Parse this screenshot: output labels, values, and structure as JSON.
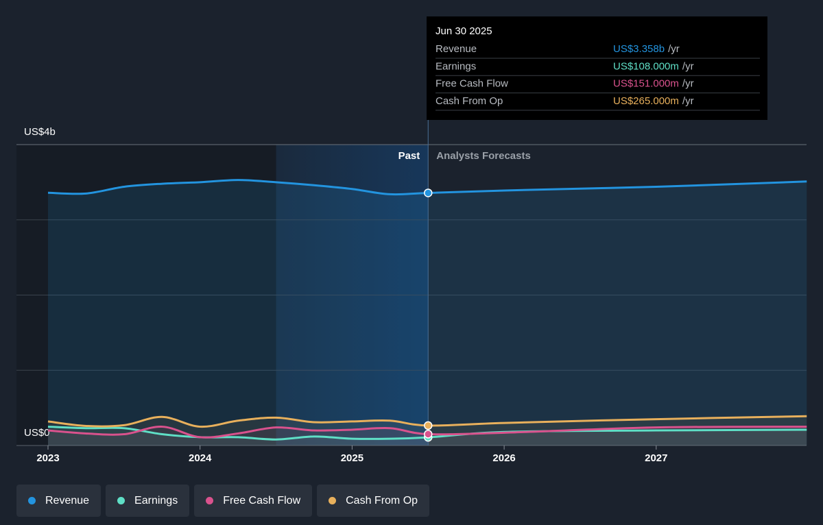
{
  "chart_data": {
    "type": "line",
    "x": [
      2023,
      2023.25,
      2023.5,
      2023.75,
      2024,
      2024.25,
      2024.5,
      2024.75,
      2025,
      2025.25,
      2025.5,
      2026,
      2027,
      2027.99
    ],
    "series": [
      {
        "name": "Revenue",
        "color": "#2394df",
        "values": [
          3.36,
          3.35,
          3.44,
          3.48,
          3.5,
          3.53,
          3.5,
          3.46,
          3.41,
          3.34,
          3.358,
          3.39,
          3.44,
          3.51
        ]
      },
      {
        "name": "Earnings",
        "color": "#5fdfc6",
        "values": [
          0.25,
          0.23,
          0.23,
          0.15,
          0.11,
          0.11,
          0.08,
          0.12,
          0.09,
          0.09,
          0.108,
          0.18,
          0.2,
          0.21
        ]
      },
      {
        "name": "Free Cash Flow",
        "color": "#d9528d",
        "values": [
          0.2,
          0.16,
          0.15,
          0.25,
          0.11,
          0.16,
          0.24,
          0.2,
          0.21,
          0.23,
          0.151,
          0.17,
          0.24,
          0.25
        ]
      },
      {
        "name": "Cash From Op",
        "color": "#e8b05c",
        "values": [
          0.32,
          0.26,
          0.27,
          0.38,
          0.25,
          0.33,
          0.37,
          0.31,
          0.32,
          0.33,
          0.265,
          0.3,
          0.35,
          0.39
        ]
      }
    ],
    "xlim": [
      2023,
      2027.99
    ],
    "xticks": [
      2023,
      2024,
      2025,
      2026,
      2027
    ],
    "ylim": [
      0,
      4
    ],
    "yticks": [
      {
        "value": 0,
        "label": "US$0"
      },
      {
        "value": 4,
        "label": "US$4b"
      }
    ],
    "grid_lines": [
      1,
      2,
      3
    ],
    "highlight": [
      2024.5,
      2025.5
    ],
    "past_label": "Past",
    "forecast_label": "Analysts Forecasts",
    "tooltip": {
      "date": "Jun 30 2025",
      "rows": [
        {
          "label": "Revenue",
          "value_label": "US$3.358b",
          "unit": "/yr"
        },
        {
          "label": "Earnings",
          "value_label": "US$108.000m",
          "unit": "/yr"
        },
        {
          "label": "Free Cash Flow",
          "value_label": "US$151.000m",
          "unit": "/yr"
        },
        {
          "label": "Cash From Op",
          "value_label": "US$265.000m",
          "unit": "/yr"
        }
      ]
    }
  }
}
